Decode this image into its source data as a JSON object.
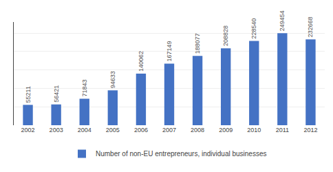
{
  "chart_data": {
    "type": "bar",
    "categories": [
      "2002",
      "2003",
      "2004",
      "2005",
      "2006",
      "2007",
      "2008",
      "2009",
      "2010",
      "2011",
      "2012"
    ],
    "series": [
      {
        "name": "Number of non-EU entrepreneurs, individual businesses",
        "color": "#4472C4",
        "values": [
          55211,
          56421,
          71843,
          94633,
          140062,
          167149,
          188077,
          208828,
          228540,
          249454,
          232668
        ]
      }
    ],
    "ylim": [
      0,
      280000
    ],
    "yticks": [
      0,
      50000,
      100000,
      150000,
      200000,
      250000
    ],
    "grid": true,
    "legend": "bottom",
    "data_labels": true,
    "tick_labels": "x"
  }
}
